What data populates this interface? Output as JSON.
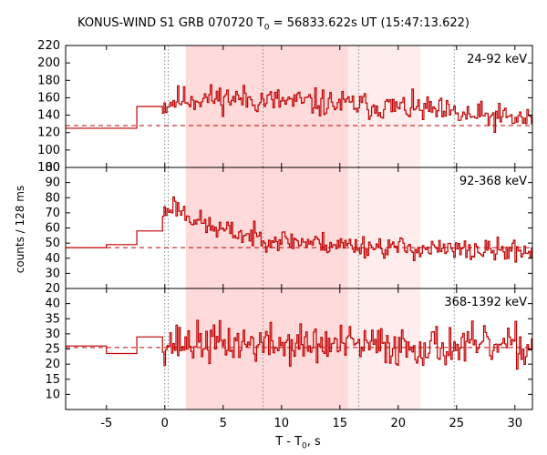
{
  "chart_data": {
    "type": "line",
    "title": {
      "prefix": "KONUS-WIND S1 GRB 070720 T",
      "sub": "0",
      "suffix": " = 56833.622s UT (15:47:13.622)"
    },
    "xlabel": {
      "prefix": "T - T",
      "sub": "0",
      "suffix": ", s"
    },
    "ylabel": "counts / 128 ms",
    "xlim": [
      -8.5,
      31.5
    ],
    "xticks": [
      -5,
      0,
      5,
      10,
      15,
      20,
      25,
      30
    ],
    "line_color": "#c00000",
    "shade_color": "#ffdada",
    "light_shade_color": "#ffecec",
    "shaded_intervals": [
      {
        "x0": 1.8,
        "x1": 15.7,
        "level": "dark"
      },
      {
        "x0": 15.7,
        "x1": 21.9,
        "level": "light"
      }
    ],
    "vlines": [
      0.0,
      0.3,
      8.4,
      16.6,
      24.8
    ],
    "panels": [
      {
        "label": "24-92 keV",
        "ylim": [
          80,
          220
        ],
        "yticks": [
          80,
          100,
          120,
          140,
          160,
          180,
          200,
          220
        ],
        "background": 128,
        "pre_steps": [
          [
            -8.5,
            125
          ],
          [
            -2.4,
            125
          ],
          [
            -2.4,
            150
          ],
          [
            -0.2,
            150
          ],
          [
            -0.2,
            143
          ]
        ],
        "trigger_start": -0.2,
        "bin": 0.128,
        "burst_base": [
          [
            0,
            152
          ],
          [
            1,
            158
          ],
          [
            5,
            160
          ],
          [
            10,
            156
          ],
          [
            16,
            152
          ],
          [
            22,
            147
          ],
          [
            25,
            140
          ],
          [
            31.5,
            135
          ]
        ],
        "noise": 13,
        "seed": 11
      },
      {
        "label": "92-368 keV",
        "ylim": [
          20,
          100
        ],
        "yticks": [
          20,
          30,
          40,
          50,
          60,
          70,
          80,
          90,
          100
        ],
        "background": 47,
        "pre_steps": [
          [
            -8.5,
            47
          ],
          [
            -5,
            47
          ],
          [
            -5,
            49
          ],
          [
            -2.4,
            49
          ],
          [
            -2.4,
            58
          ],
          [
            -0.2,
            58
          ],
          [
            -0.2,
            62
          ]
        ],
        "trigger_start": -0.2,
        "bin": 0.128,
        "burst_base": [
          [
            0,
            70
          ],
          [
            0.6,
            76
          ],
          [
            2,
            68
          ],
          [
            4,
            60
          ],
          [
            7,
            55
          ],
          [
            10,
            52
          ],
          [
            15,
            49
          ],
          [
            20,
            47
          ],
          [
            25,
            45
          ],
          [
            31.5,
            45
          ]
        ],
        "noise": 6,
        "seed": 23
      },
      {
        "label": "368-1392 keV",
        "ylim": [
          5,
          45
        ],
        "yticks": [
          10,
          15,
          20,
          25,
          30,
          35,
          40
        ],
        "background": 25.5,
        "pre_steps": [
          [
            -8.5,
            26
          ],
          [
            -5,
            26
          ],
          [
            -5,
            23.5
          ],
          [
            -2.4,
            23.5
          ],
          [
            -2.4,
            29
          ],
          [
            -0.2,
            29
          ],
          [
            -0.2,
            27
          ]
        ],
        "trigger_start": -0.2,
        "bin": 0.128,
        "burst_base": [
          [
            0,
            27
          ],
          [
            5,
            27
          ],
          [
            10,
            26.5
          ],
          [
            20,
            26
          ],
          [
            31.5,
            25.5
          ]
        ],
        "noise": 5.5,
        "seed": 37
      }
    ]
  }
}
